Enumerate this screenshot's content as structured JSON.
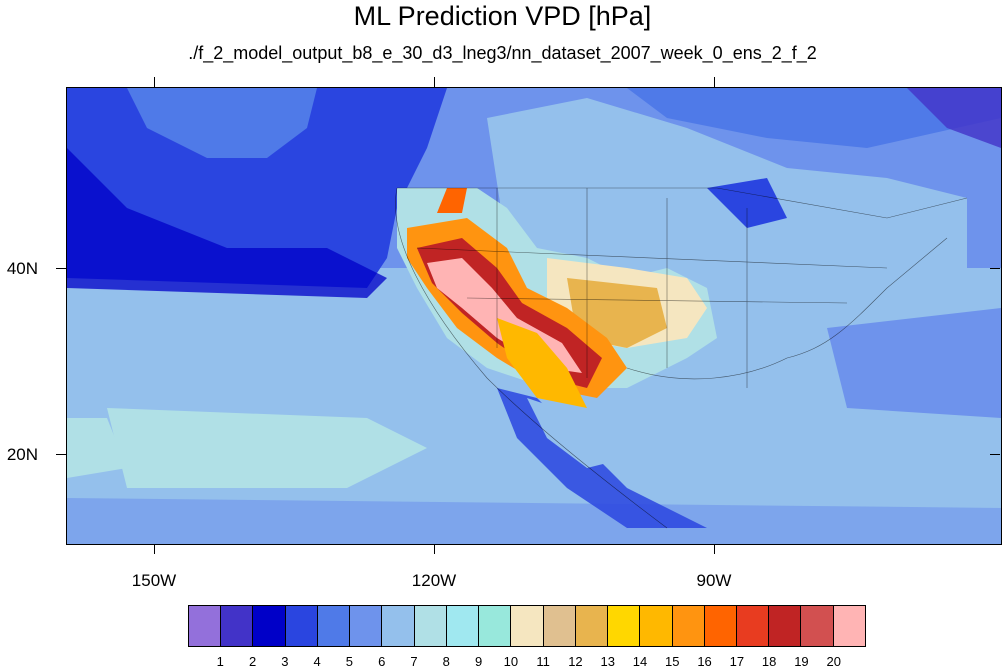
{
  "title": "ML Prediction VPD [hPa]",
  "subtitle": "./f_2_model_output_b8_e_30_d3_lneg3/nn_dataset_2007_week_0_ens_2_f_2",
  "map": {
    "type": "filled-contour-map",
    "variable": "VPD",
    "units": "hPa",
    "lat_labels": [
      "40N",
      "20N"
    ],
    "lon_labels": [
      "150W",
      "120W",
      "90W"
    ],
    "lon_range": [
      -160,
      -60
    ],
    "lat_range": [
      10,
      59
    ]
  },
  "colorbar": {
    "colors": [
      "#9370db",
      "#4233c8",
      "#0000c8",
      "#2a45e0",
      "#4f7ae8",
      "#6e93ec",
      "#94c0ec",
      "#b0e0e6",
      "#a0e8f0",
      "#98e8dc",
      "#f5e6c0",
      "#e0c090",
      "#e8b44e",
      "#ffd700",
      "#ffb800",
      "#ff9410",
      "#ff6400",
      "#e83c20",
      "#c02424",
      "#d25050",
      "#ffb4b4"
    ],
    "labels": [
      "1",
      "2",
      "3",
      "4",
      "5",
      "6",
      "7",
      "8",
      "9",
      "10",
      "11",
      "12",
      "13",
      "14",
      "15",
      "16",
      "17",
      "18",
      "19",
      "20"
    ]
  }
}
